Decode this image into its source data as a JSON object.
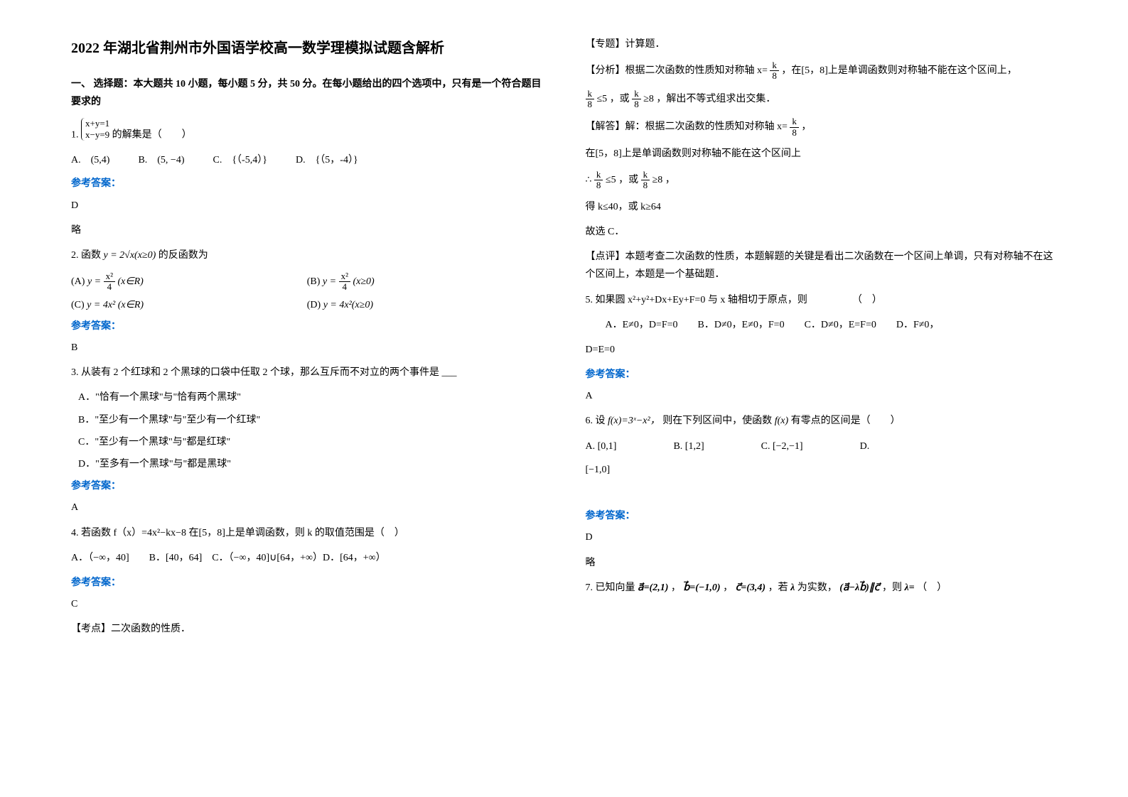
{
  "title": "2022 年湖北省荆州市外国语学校高一数学理模拟试题含解析",
  "section1": {
    "header": "一、 选择题：本大题共 10 小题，每小题 5 分，共 50 分。在每小题给出的四个选项中，只有是一个符合题目要求的",
    "q1": {
      "num": "1.",
      "text": " 的解集是（　　）",
      "sys1": "x+y=1",
      "sys2": "x−y=9",
      "optA": "A.　(5,4)",
      "optB": "B.　(5, −4)",
      "optC": "C.　{（-5,4）}",
      "optD": "D.　{（5，-4）}",
      "ansLabel": "参考答案：",
      "ans": "D",
      "note": "略"
    },
    "q2": {
      "num": "2. 函数",
      "funcA": "y = 2√x(x≥0)",
      "text": " 的反函数为",
      "optA_label": "(A)",
      "optA_frac_num": "x²",
      "optA_frac_den": "4",
      "optA_suffix": "(x∈R)",
      "optB_label": "(B)",
      "optB_frac_num": "x²",
      "optB_frac_den": "4",
      "optB_suffix": "(x≥0)",
      "optC_label": "(C)",
      "optC_text": "y = 4x² (x∈R)",
      "optD_label": "(D)",
      "optD_text": "y = 4x²(x≥0)",
      "ansLabel": "参考答案：",
      "ans": "B"
    },
    "q3": {
      "num": "3. 从装有 2 个红球和 2 个黑球的口袋中任取 2 个球，那么互斥而不对立的两个事件是 ___",
      "optA": "A．\"恰有一个黑球\"与\"恰有两个黑球\"",
      "optB": "B．\"至少有一个黑球\"与\"至少有一个红球\"",
      "optC": "C．\"至少有一个黑球\"与\"都是红球\"",
      "optD": "D．\"至多有一个黑球\"与\"都是黑球\"",
      "ansLabel": "参考答案：",
      "ans": "A"
    },
    "q4": {
      "num": "4. 若函数 f（x）=4x²−kx−8 在[5，8]上是单调函数，则 k 的取值范围是（　）",
      "opts": "A．（−∞，40]　　B．[40，64]　C．（−∞，40]∪[64，+∞）D．[64，+∞）",
      "ansLabel": "参考答案：",
      "ans": "C",
      "kaodian": "【考点】二次函数的性质．"
    }
  },
  "col2": {
    "zhuanti": "【专题】计算题．",
    "fenxi_pre": "【分析】根据二次函数的性质知对称轴 ",
    "fenxi_xeq": "x=",
    "fenxi_k": "k",
    "fenxi_8": "8",
    "fenxi_post": "，在[5，8]上是单调函数则对称轴不能在这个区间上，",
    "fenxi_line2a": "≤5",
    "fenxi_line2b": "，或",
    "fenxi_line2c": "≥8",
    "fenxi_line2d": "，解出不等式组求出交集．",
    "jieda_pre": "【解答】解：根据二次函数的性质知对称轴 ",
    "jieda_post": "，",
    "jieda_line2": "在[5，8]上是单调函数则对称轴不能在这个区间上",
    "jieda_line3_pre": "∴",
    "jieda_line3_a": "≤5",
    "jieda_line3_b": "，或",
    "jieda_line3_c": "≥8",
    "jieda_line3_d": "，",
    "jieda_line4": "得 k≤40，或 k≥64",
    "jieda_line5": "故选 C．",
    "dianping": "【点评】本题考查二次函数的性质，本题解题的关键是看出二次函数在一个区间上单调，只有对称轴不在这个区间上，本题是一个基础题．",
    "q5": {
      "text": "5. 如果圆 x²+y²+Dx+Ey+F=0 与 x 轴相切于原点，则　　　　　（　）",
      "opts": "　　A．E≠0，D=F=0　　B．D≠0，E≠0，F=0　　C．D≠0，E=F=0　　D．F≠0，",
      "opts2": "D=E=0",
      "ansLabel": "参考答案：",
      "ans": "A"
    },
    "q6": {
      "num": "6. 设",
      "func": "f(x)=3ˣ−x²，",
      "text": "则在下列区间中，使函数",
      "func2": "f(x)",
      "text2": "有零点的区间是（　　）",
      "optA_label": "A.",
      "optA": "[0,1]",
      "optB_label": "B.",
      "optB": "[1,2]",
      "optC_label": "C.",
      "optC": "[−2,−1]",
      "optD_label": "D.",
      "optD": "[−1,0]",
      "ansLabel": "参考答案：",
      "ans": "D",
      "note": "略"
    },
    "q7": {
      "text": "7. 已知向量",
      "a_vec": "a⃗=(2,1)",
      "comma1": "，",
      "b_vec": "b⃗=(−1,0)",
      "comma2": "，",
      "c_vec": "c⃗=(3,4)",
      "text2": "，若",
      "lambda": "λ",
      "text3": "为实数，",
      "expr": "(a⃗−λb⃗)∥c⃗",
      "text4": "，则",
      "lambda2": "λ=",
      "text5": "（　）"
    }
  }
}
